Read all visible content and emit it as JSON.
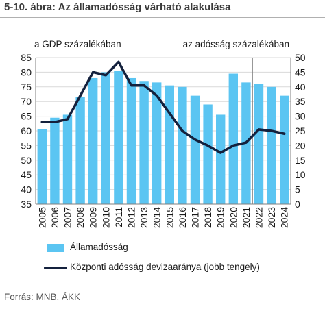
{
  "title": "5-10. ábra: Az államadósság várható alakulása",
  "source": "Forrás: MNB, ÁKK",
  "chart_data": {
    "type": "bar",
    "categories": [
      "2005",
      "2006",
      "2007",
      "2008",
      "2009",
      "2010",
      "2011",
      "2012",
      "2013",
      "2014",
      "2015",
      "2016",
      "2017",
      "2018",
      "2019",
      "2020",
      "2021",
      "2022",
      "2023",
      "2024"
    ],
    "left_axis_label": "a GDP százalékában",
    "right_axis_label": "az adósság százalékában",
    "ylim_left": [
      35,
      85
    ],
    "yticks_left": [
      35,
      40,
      45,
      50,
      55,
      60,
      65,
      70,
      75,
      80,
      85
    ],
    "ylim_right": [
      0,
      50
    ],
    "yticks_right": [
      0,
      5,
      10,
      15,
      20,
      25,
      30,
      35,
      40,
      45,
      50
    ],
    "forecast_divider_after": "2021",
    "grid": true,
    "legend_placement": "bottom",
    "series": [
      {
        "name": "Államadósság",
        "type": "bar",
        "axis": "left",
        "color": "#5bc5f2",
        "values": [
          60.5,
          64.5,
          65.5,
          71.5,
          78.0,
          80.0,
          80.5,
          78.0,
          77.0,
          76.5,
          75.5,
          75.0,
          72.0,
          69.0,
          65.5,
          79.5,
          76.5,
          76.0,
          75.0,
          72.0
        ]
      },
      {
        "name": "Központi adósság devizaaránya (jobb tengely)",
        "type": "line",
        "axis": "right",
        "color": "#14213d",
        "values": [
          28.0,
          28.0,
          29.0,
          37.0,
          45.0,
          44.0,
          48.5,
          40.5,
          40.5,
          37.0,
          31.0,
          25.0,
          22.0,
          20.0,
          17.5,
          20.0,
          21.0,
          25.5,
          25.0,
          24.0
        ]
      }
    ]
  }
}
